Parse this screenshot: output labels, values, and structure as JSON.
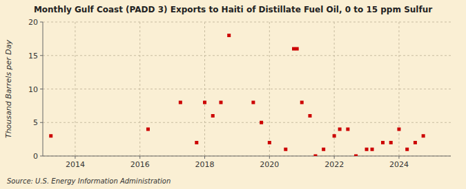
{
  "chart_data": {
    "type": "scatter",
    "title": "Monthly Gulf Coast (PADD 3) Exports to Haiti of Distillate Fuel Oil, 0 to 15 ppm Sulfur",
    "ylabel": "Thousand Barrels per Day",
    "source": "Source: U.S. Energy Information Administration",
    "color": "#cc0000",
    "marker": "square",
    "grid": true,
    "xlim": [
      2013.0,
      2025.6
    ],
    "ylim": [
      0,
      20
    ],
    "xticks": [
      2014,
      2016,
      2018,
      2020,
      2022,
      2024
    ],
    "yticks": [
      0,
      5,
      10,
      15,
      20
    ],
    "x": [
      2013.25,
      2016.25,
      2017.25,
      2017.75,
      2018.0,
      2018.25,
      2018.5,
      2018.75,
      2019.5,
      2019.75,
      2020.0,
      2020.5,
      2020.75,
      2020.85,
      2021.0,
      2021.25,
      2021.42,
      2021.67,
      2022.0,
      2022.17,
      2022.42,
      2022.67,
      2023.0,
      2023.17,
      2023.5,
      2023.75,
      2024.0,
      2024.25,
      2024.5,
      2024.75
    ],
    "values": [
      3.0,
      4.0,
      8.0,
      2.0,
      8.0,
      6.0,
      8.0,
      18.0,
      8.0,
      5.0,
      2.0,
      1.0,
      16.0,
      16.0,
      8.0,
      6.0,
      0.0,
      1.0,
      3.0,
      4.0,
      4.0,
      0.0,
      1.0,
      1.0,
      2.0,
      2.0,
      4.0,
      1.0,
      2.0,
      3.0
    ]
  }
}
